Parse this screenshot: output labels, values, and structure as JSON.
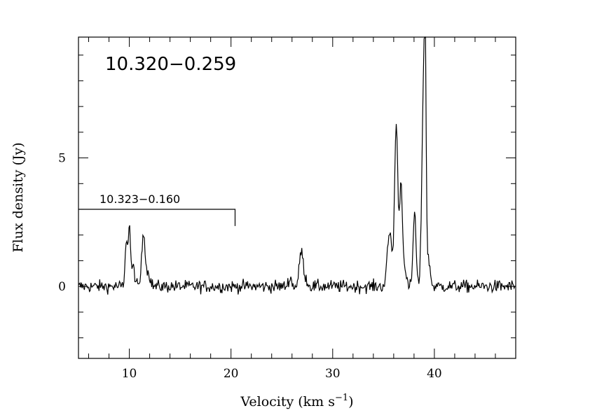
{
  "chart_data": {
    "type": "line",
    "title": "10.320−0.259",
    "xlabel": "Velocity (km s",
    "xlabel_sup": "−1",
    "xlabel_close": ")",
    "ylabel": "Flux density (Jy)",
    "xlim": [
      5,
      48
    ],
    "ylim": [
      -2.8,
      9.7
    ],
    "xticks": [
      10,
      20,
      30,
      40
    ],
    "xtick_labels": [
      "10",
      "20",
      "30",
      "40"
    ],
    "yticks": [
      0,
      5
    ],
    "ytick_labels": [
      "0",
      "5"
    ],
    "grid": false,
    "annotation": {
      "text": "10.323−0.160",
      "x_start": 5,
      "x_end": 20.4,
      "y": 3.0,
      "drop_to": 2.35
    },
    "series": [
      {
        "peaks": [
          [
            9.7,
            1.8,
            0.1
          ],
          [
            10.0,
            2.35,
            0.12
          ],
          [
            10.4,
            0.7,
            0.15
          ],
          [
            11.4,
            2.1,
            0.17
          ],
          [
            11.9,
            0.5,
            0.18
          ],
          [
            25.8,
            0.35,
            0.15
          ],
          [
            26.9,
            1.35,
            0.18
          ],
          [
            27.3,
            0.3,
            0.2
          ],
          [
            35.6,
            2.1,
            0.22
          ],
          [
            36.25,
            6.3,
            0.16
          ],
          [
            36.7,
            3.2,
            0.13
          ],
          [
            36.9,
            1.2,
            0.2
          ],
          [
            38.05,
            2.9,
            0.14
          ],
          [
            38.9,
            6.8,
            0.15
          ],
          [
            39.1,
            7.7,
            0.1
          ],
          [
            39.45,
            1.0,
            0.15
          ]
        ],
        "noise_rms": 0.12
      }
    ]
  }
}
